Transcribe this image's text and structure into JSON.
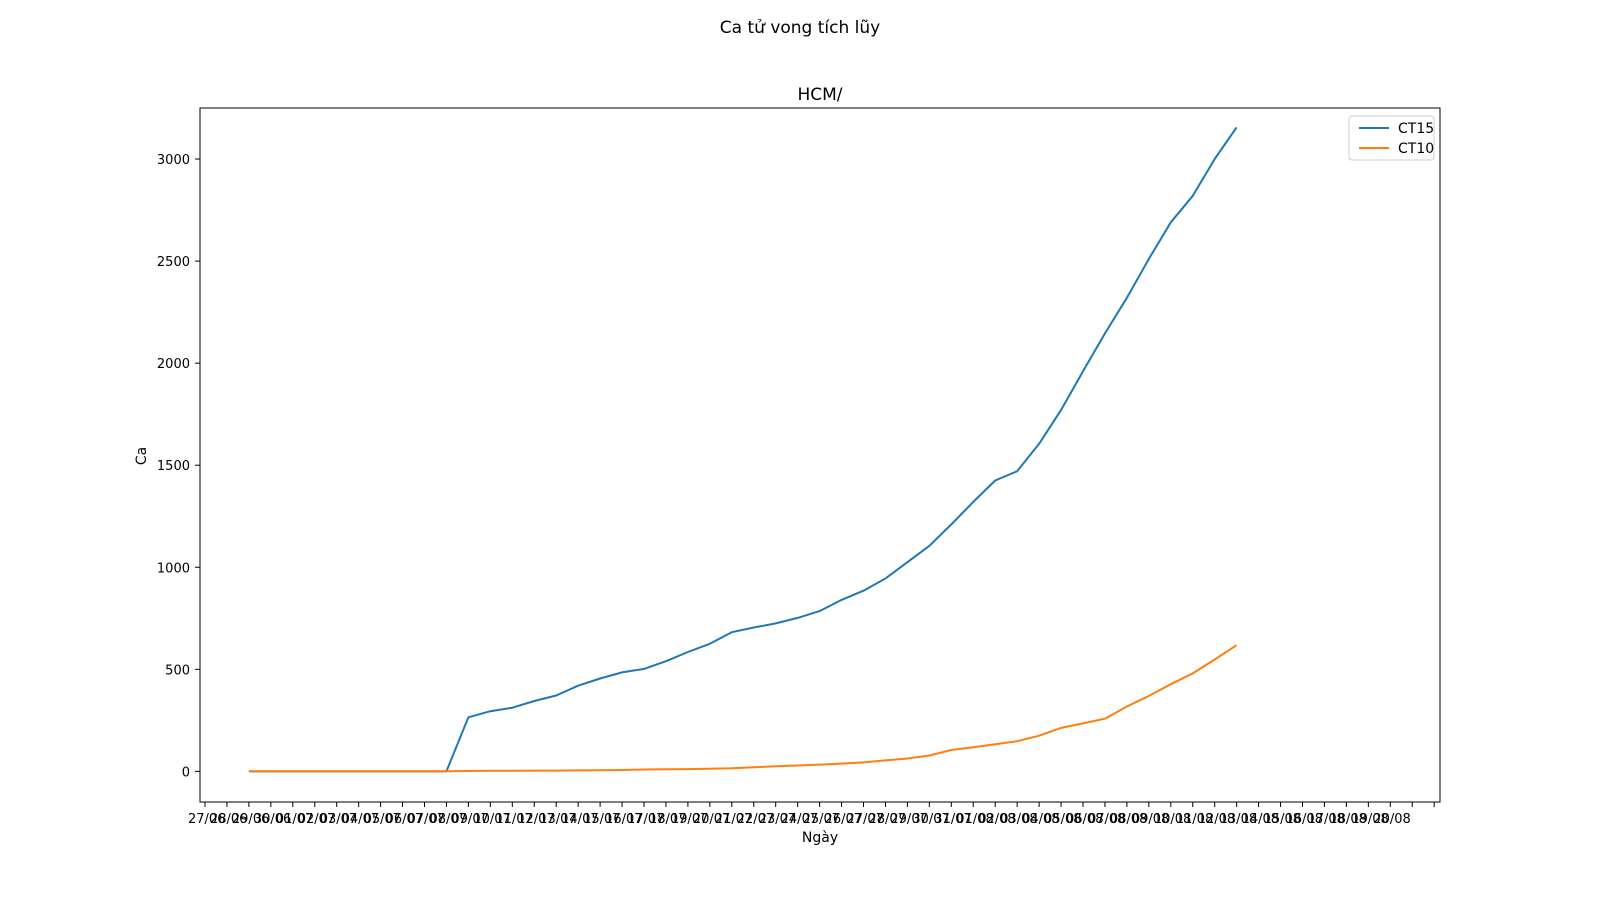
{
  "figure_title": "Ca tử vong tích lũy",
  "chart_data": {
    "type": "line",
    "title": "HCM/",
    "xlabel": "Ngày",
    "ylabel": "Ca",
    "legend_position": "top-right",
    "grid": false,
    "ylim": [
      -150,
      3250
    ],
    "yticks": [
      0,
      500,
      1000,
      1500,
      2000,
      2500,
      3000
    ],
    "x_tick_labels": [
      "27/06",
      "28/06",
      "29/06",
      "30/06",
      "01/07",
      "02/07",
      "03/07",
      "04/07",
      "05/07",
      "06/07",
      "07/07",
      "08/07",
      "09/07",
      "10/07",
      "11/07",
      "12/07",
      "13/07",
      "14/07",
      "15/07",
      "16/07",
      "17/07",
      "18/07",
      "19/07",
      "20/07",
      "21/07",
      "22/07",
      "23/07",
      "24/07",
      "25/07",
      "26/07",
      "27/07",
      "28/07",
      "29/07",
      "30/07",
      "31/07",
      "01/08",
      "02/08",
      "03/08",
      "04/08",
      "05/08",
      "06/08",
      "07/08",
      "08/08",
      "09/08",
      "10/08",
      "11/08",
      "12/08",
      "13/08",
      "14/08",
      "15/08",
      "16/08",
      "17/08",
      "18/08",
      "19/08",
      "20/08"
    ],
    "x": [
      "29/06",
      "30/06",
      "01/07",
      "02/07",
      "03/07",
      "04/07",
      "05/07",
      "06/07",
      "07/07",
      "08/07",
      "09/07",
      "10/07",
      "11/07",
      "12/07",
      "13/07",
      "14/07",
      "15/07",
      "16/07",
      "17/07",
      "18/07",
      "19/07",
      "20/07",
      "21/07",
      "22/07",
      "23/07",
      "24/07",
      "25/07",
      "26/07",
      "27/07",
      "28/07",
      "29/07",
      "30/07",
      "31/07",
      "01/08",
      "02/08",
      "03/08",
      "04/08",
      "05/08",
      "06/08",
      "07/08",
      "08/08",
      "09/08",
      "10/08",
      "11/08",
      "12/08",
      "13/08",
      "14/08"
    ],
    "series": [
      {
        "name": "CT15",
        "color": "#1f77b4",
        "values": [
          0,
          0,
          0,
          0,
          0,
          0,
          0,
          0,
          0,
          0,
          265,
          295,
          312,
          345,
          372,
          420,
          455,
          485,
          502,
          540,
          585,
          625,
          682,
          705,
          725,
          752,
          785,
          840,
          885,
          945,
          1025,
          1105,
          1210,
          1320,
          1425,
          1470,
          1605,
          1770,
          1960,
          2145,
          2320,
          2510,
          2690,
          2820,
          3000,
          3155,
          null
        ]
      },
      {
        "name": "CT10",
        "color": "#ff7f0e",
        "values": [
          1,
          1,
          1,
          1,
          1,
          1,
          1,
          1,
          1,
          1,
          2,
          3,
          3,
          4,
          4,
          5,
          6,
          7,
          9,
          10,
          11,
          13,
          15,
          20,
          25,
          29,
          33,
          38,
          44,
          54,
          63,
          78,
          105,
          118,
          133,
          148,
          175,
          213,
          235,
          258,
          318,
          370,
          427,
          480,
          548,
          618,
          null
        ]
      }
    ]
  }
}
